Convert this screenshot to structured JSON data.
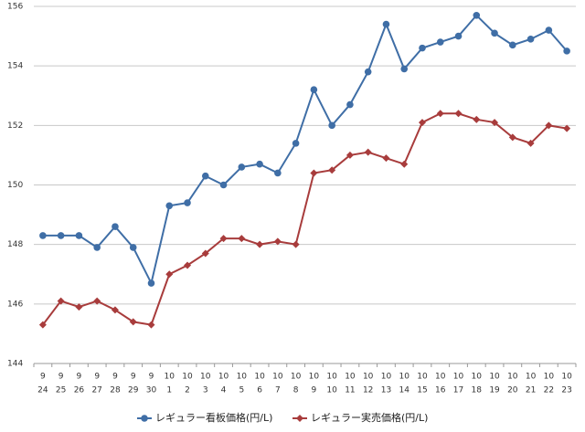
{
  "chart_data": {
    "type": "line",
    "categories": [
      [
        "9",
        "24"
      ],
      [
        "9",
        "25"
      ],
      [
        "9",
        "26"
      ],
      [
        "9",
        "27"
      ],
      [
        "9",
        "28"
      ],
      [
        "9",
        "29"
      ],
      [
        "9",
        "30"
      ],
      [
        "10",
        "1"
      ],
      [
        "10",
        "2"
      ],
      [
        "10",
        "3"
      ],
      [
        "10",
        "4"
      ],
      [
        "10",
        "5"
      ],
      [
        "10",
        "6"
      ],
      [
        "10",
        "7"
      ],
      [
        "10",
        "8"
      ],
      [
        "10",
        "9"
      ],
      [
        "10",
        "10"
      ],
      [
        "10",
        "11"
      ],
      [
        "10",
        "12"
      ],
      [
        "10",
        "13"
      ],
      [
        "10",
        "14"
      ],
      [
        "10",
        "15"
      ],
      [
        "10",
        "16"
      ],
      [
        "10",
        "17"
      ],
      [
        "10",
        "18"
      ],
      [
        "10",
        "19"
      ],
      [
        "10",
        "20"
      ],
      [
        "10",
        "21"
      ],
      [
        "10",
        "22"
      ],
      [
        "10",
        "23"
      ]
    ],
    "series": [
      {
        "name": "レギュラー看板価格(円/L)",
        "color": "#3f6ea6",
        "marker": "circle",
        "values": [
          148.3,
          148.3,
          148.3,
          147.9,
          148.6,
          147.9,
          146.7,
          149.3,
          149.4,
          150.3,
          150.0,
          150.6,
          150.7,
          150.4,
          151.4,
          153.2,
          152.0,
          152.7,
          153.8,
          155.4,
          153.9,
          154.6,
          154.8,
          155.0,
          155.7,
          155.1,
          154.7,
          154.9,
          155.2,
          154.5
        ]
      },
      {
        "name": "レギュラー実売価格(円/L)",
        "color": "#a83c3c",
        "marker": "diamond",
        "values": [
          145.3,
          146.1,
          145.9,
          146.1,
          145.8,
          145.4,
          145.3,
          147.0,
          147.3,
          147.7,
          148.2,
          148.2,
          148.0,
          148.1,
          148.0,
          150.4,
          150.5,
          151.0,
          151.1,
          150.9,
          150.7,
          152.1,
          152.4,
          152.4,
          152.2,
          152.1,
          151.6,
          151.4,
          152.0,
          151.9
        ]
      }
    ],
    "ylim": [
      144,
      156
    ],
    "yticks": [
      144,
      146,
      148,
      150,
      152,
      154,
      156
    ],
    "grid": true,
    "legend": "bottom"
  }
}
